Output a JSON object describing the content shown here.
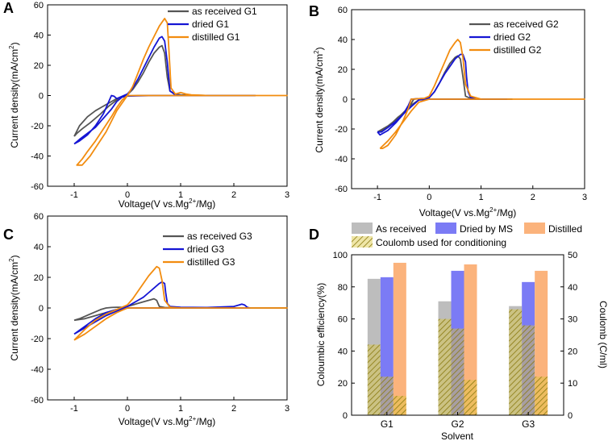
{
  "chart_data": [
    {
      "panel": "A",
      "type": "line",
      "xlabel": "Voltage(V vs.Mg",
      "xlabel_sup": "2+",
      "xlabel_tail": "/Mg)",
      "ylabel": "Current density(mA/cm",
      "ylabel_sup": "2",
      "ylabel_tail": ")",
      "xlim": [
        -1.5,
        3
      ],
      "ylim": [
        -60,
        60
      ],
      "xticks": [
        -1,
        0,
        1,
        2,
        3
      ],
      "yticks": [
        -60,
        -40,
        -20,
        0,
        20,
        40,
        60
      ],
      "legend": "top-right",
      "series": [
        {
          "name": "as received G1",
          "color": "#555555",
          "x": [
            -1.0,
            -0.9,
            -0.75,
            -0.6,
            -0.45,
            -0.3,
            -0.2,
            -0.1,
            0.0,
            0.1,
            0.2,
            0.3,
            0.4,
            0.5,
            0.6,
            0.65,
            0.7,
            0.75,
            0.8,
            0.9,
            1.0,
            1.5,
            2.0,
            2.4,
            2.4,
            2.0,
            1.5,
            1.0,
            0.8,
            0.6,
            0.4,
            0.2,
            0.0,
            -0.1,
            -0.2,
            -0.35,
            -0.5,
            -0.7,
            -0.85,
            -0.95,
            -1.0
          ],
          "y": [
            -27,
            -20,
            -14,
            -10,
            -7,
            -4,
            -2,
            -1,
            0.5,
            4,
            9,
            15,
            22,
            28,
            32,
            33,
            28,
            12,
            3,
            1,
            0.5,
            0,
            0,
            0,
            0,
            0,
            0,
            0,
            0,
            0,
            0,
            0,
            -0.3,
            -1,
            -3,
            -7,
            -12,
            -18,
            -22,
            -25,
            -27
          ]
        },
        {
          "name": "dried G1",
          "color": "#1515d4",
          "x": [
            -1.0,
            -0.9,
            -0.75,
            -0.6,
            -0.45,
            -0.35,
            -0.3,
            -0.25,
            -0.2,
            -0.1,
            0.0,
            0.1,
            0.2,
            0.3,
            0.4,
            0.5,
            0.6,
            0.65,
            0.7,
            0.75,
            0.8,
            0.9,
            1.0,
            1.5,
            2.0,
            2.4,
            2.4,
            2.0,
            1.5,
            1.0,
            0.5,
            0.0,
            -0.1,
            -0.2,
            -0.3,
            -0.45,
            -0.6,
            -0.75,
            -0.9,
            -1.0
          ],
          "y": [
            -32,
            -30,
            -26,
            -20,
            -12,
            -4,
            0,
            -0.5,
            -2,
            -0.5,
            1,
            5,
            11,
            18,
            25,
            32,
            38,
            39,
            36,
            22,
            3,
            0.5,
            0,
            0,
            0,
            0,
            0,
            0,
            0,
            0,
            0,
            -0.3,
            -1,
            -4,
            -9,
            -15,
            -21,
            -25,
            -29,
            -32
          ]
        },
        {
          "name": "distilled G1",
          "color": "#f28c0f",
          "x": [
            -0.9,
            -0.85,
            -0.7,
            -0.55,
            -0.4,
            -0.3,
            -0.2,
            -0.1,
            0.0,
            0.1,
            0.2,
            0.3,
            0.4,
            0.5,
            0.6,
            0.7,
            0.75,
            0.78,
            0.82,
            0.9,
            1.0,
            1.1,
            1.2,
            1.5,
            2.0,
            3.0,
            3.0,
            2.0,
            1.0,
            0.5,
            0.0,
            -0.1,
            -0.2,
            -0.3,
            -0.45,
            -0.6,
            -0.75,
            -0.85,
            -0.95,
            -0.9
          ],
          "y": [
            -46,
            -46,
            -40,
            -32,
            -24,
            -17,
            -10,
            -5,
            0,
            6,
            15,
            24,
            32,
            39,
            46,
            51,
            48,
            30,
            5,
            1,
            2,
            1,
            0.5,
            0,
            0,
            0,
            0,
            0,
            0,
            0,
            0,
            -3,
            -8,
            -14,
            -22,
            -30,
            -37,
            -42,
            -46,
            -46
          ]
        }
      ]
    },
    {
      "panel": "B",
      "type": "line",
      "xlabel": "Voltage(V vs.Mg",
      "xlabel_sup": "2+",
      "xlabel_tail": "/Mg)",
      "ylabel": "Current density(mA/cm",
      "ylabel_sup": "2",
      "ylabel_tail": ")",
      "xlim": [
        -1.5,
        3
      ],
      "ylim": [
        -60,
        60
      ],
      "xticks": [
        -1,
        0,
        1,
        2,
        3
      ],
      "yticks": [
        -60,
        -40,
        -20,
        0,
        20,
        40,
        60
      ],
      "legend": "top-right",
      "series": [
        {
          "name": "as received G2",
          "color": "#555555",
          "x": [
            -1.0,
            -0.9,
            -0.75,
            -0.6,
            -0.45,
            -0.35,
            -0.3,
            -0.2,
            -0.1,
            0.0,
            0.1,
            0.2,
            0.3,
            0.4,
            0.5,
            0.55,
            0.6,
            0.65,
            0.7,
            0.8,
            1.0,
            1.6,
            1.6,
            1.0,
            0.5,
            0.0,
            -0.2,
            -0.35,
            -0.5,
            -0.65,
            -0.8,
            -0.9,
            -1.0
          ],
          "y": [
            -22,
            -21,
            -17,
            -12,
            -8,
            -3,
            0,
            0.3,
            0.5,
            1,
            5,
            11,
            18,
            24,
            28,
            29,
            27,
            15,
            2,
            0.5,
            0,
            0,
            0,
            0,
            0,
            0,
            -0.5,
            -4,
            -9,
            -14,
            -18,
            -20,
            -22
          ]
        },
        {
          "name": "dried G2",
          "color": "#1515d4",
          "x": [
            -1.0,
            -0.95,
            -0.8,
            -0.65,
            -0.5,
            -0.4,
            -0.35,
            -0.2,
            -0.1,
            0.0,
            0.1,
            0.2,
            0.3,
            0.4,
            0.5,
            0.6,
            0.65,
            0.7,
            0.72,
            0.75,
            0.8,
            0.9,
            1.0,
            1.5,
            1.5,
            1.0,
            0.5,
            0.0,
            -0.2,
            -0.35,
            -0.5,
            -0.65,
            -0.8,
            -0.92,
            -1.0
          ],
          "y": [
            -22,
            -24,
            -21,
            -16,
            -10,
            -4,
            0,
            0.3,
            0.5,
            1,
            5,
            11,
            17,
            22,
            27,
            30,
            30,
            25,
            15,
            5,
            1,
            0.5,
            0,
            0,
            0,
            0,
            0,
            0,
            -0.5,
            -5,
            -10,
            -15,
            -19,
            -22,
            -22
          ]
        },
        {
          "name": "distilled G2",
          "color": "#f28c0f",
          "x": [
            -0.95,
            -0.9,
            -0.8,
            -0.65,
            -0.5,
            -0.4,
            -0.35,
            -0.2,
            -0.1,
            0.0,
            0.1,
            0.2,
            0.3,
            0.4,
            0.5,
            0.55,
            0.6,
            0.65,
            0.7,
            0.8,
            1.0,
            2.0,
            3.0,
            3.0,
            2.0,
            1.0,
            0.5,
            0.0,
            -0.2,
            -0.35,
            -0.5,
            -0.65,
            -0.8,
            -0.95
          ],
          "y": [
            -33,
            -33,
            -31,
            -24,
            -14,
            -6,
            0,
            0.3,
            0.5,
            2,
            9,
            17,
            25,
            33,
            38,
            40,
            38,
            28,
            10,
            2,
            0,
            0,
            0,
            0,
            0,
            0,
            0,
            0,
            -2,
            -8,
            -15,
            -22,
            -28,
            -33
          ]
        }
      ]
    },
    {
      "panel": "C",
      "type": "line",
      "xlabel": "Voltage(V vs.Mg",
      "xlabel_sup": "2+",
      "xlabel_tail": "/Mg)",
      "ylabel": "Current density(mA/cm",
      "ylabel_sup": "2",
      "ylabel_tail": ")",
      "xlim": [
        -1.5,
        3
      ],
      "ylim": [
        -60,
        60
      ],
      "xticks": [
        -1,
        0,
        1,
        2,
        3
      ],
      "yticks": [
        -60,
        -40,
        -20,
        0,
        20,
        40,
        60
      ],
      "legend": "top-right",
      "series": [
        {
          "name": "as received G3",
          "color": "#555555",
          "x": [
            -1.0,
            -0.9,
            -0.7,
            -0.5,
            -0.4,
            -0.3,
            -0.2,
            -0.1,
            0.0,
            0.1,
            0.2,
            0.3,
            0.4,
            0.5,
            0.55,
            0.6,
            0.7,
            1.0,
            2.0,
            3.0,
            3.0,
            2.0,
            1.0,
            0.5,
            0.0,
            -0.2,
            -0.4,
            -0.6,
            -0.8,
            -1.0
          ],
          "y": [
            -8,
            -7,
            -4,
            -1,
            0,
            0.3,
            0.5,
            0.5,
            1,
            2,
            3,
            4,
            5,
            6,
            5,
            1,
            0.3,
            0,
            0,
            0,
            0,
            0,
            0,
            0,
            0,
            -1,
            -3,
            -5,
            -7,
            -8
          ]
        },
        {
          "name": "dried G3",
          "color": "#1515d4",
          "x": [
            -1.0,
            -0.8,
            -0.6,
            -0.4,
            -0.2,
            0.0,
            0.1,
            0.2,
            0.3,
            0.4,
            0.5,
            0.6,
            0.65,
            0.7,
            0.72,
            0.75,
            0.8,
            1.0,
            1.5,
            2.0,
            2.1,
            2.15,
            2.2,
            2.25,
            2.3,
            2.3,
            2.0,
            1.0,
            0.5,
            0.0,
            -0.2,
            -0.4,
            -0.6,
            -0.8,
            -1.0
          ],
          "y": [
            -17,
            -12,
            -7,
            -3,
            -1,
            1,
            3,
            5,
            7,
            10,
            13,
            16,
            17,
            16,
            10,
            3,
            1,
            0.5,
            0.3,
            1,
            2,
            2.5,
            2,
            0.5,
            0,
            0,
            0,
            0,
            0,
            0,
            -2,
            -5,
            -9,
            -13,
            -17
          ]
        },
        {
          "name": "distilled G3",
          "color": "#f28c0f",
          "x": [
            -1.0,
            -0.8,
            -0.6,
            -0.4,
            -0.2,
            0.0,
            0.1,
            0.2,
            0.3,
            0.4,
            0.5,
            0.55,
            0.6,
            0.65,
            0.7,
            0.8,
            1.0,
            2.0,
            3.0,
            3.0,
            2.0,
            1.0,
            0.5,
            0.0,
            -0.2,
            -0.4,
            -0.6,
            -0.8,
            -1.0
          ],
          "y": [
            -21,
            -14,
            -8,
            -4,
            -1,
            2,
            6,
            11,
            16,
            21,
            25,
            27,
            26,
            18,
            5,
            0.5,
            0,
            0,
            0,
            0,
            0,
            0,
            0,
            0,
            -3,
            -7,
            -12,
            -17,
            -21
          ]
        }
      ]
    },
    {
      "panel": "D",
      "type": "bar",
      "xlabel": "Solvent",
      "ylabel": "Coloumbic efficiency(%)",
      "ylabel_right": "Coulomb (C/ml)",
      "categories": [
        "G1",
        "G2",
        "G3"
      ],
      "ylim": [
        0,
        100
      ],
      "ylim_right": [
        0,
        50
      ],
      "yticks": [
        0,
        20,
        40,
        60,
        80,
        100
      ],
      "yticks_right": [
        0,
        10,
        20,
        30,
        40,
        50
      ],
      "legend": "top",
      "series": [
        {
          "name": "As received",
          "color": "#bdbdbd",
          "values": [
            85,
            71,
            68
          ],
          "coulomb": [
            22,
            30,
            33
          ]
        },
        {
          "name": "Dried by MS",
          "color": "#7b7bf5",
          "values": [
            86,
            90,
            83
          ],
          "coulomb": [
            12,
            27,
            28
          ]
        },
        {
          "name": "Distilled",
          "color": "#fbb37c",
          "values": [
            95,
            94,
            90
          ],
          "coulomb": [
            6,
            11,
            12
          ]
        }
      ],
      "hatch_label": "Coulomb used for conditioning",
      "hatch_color": "#c9b43a"
    }
  ]
}
